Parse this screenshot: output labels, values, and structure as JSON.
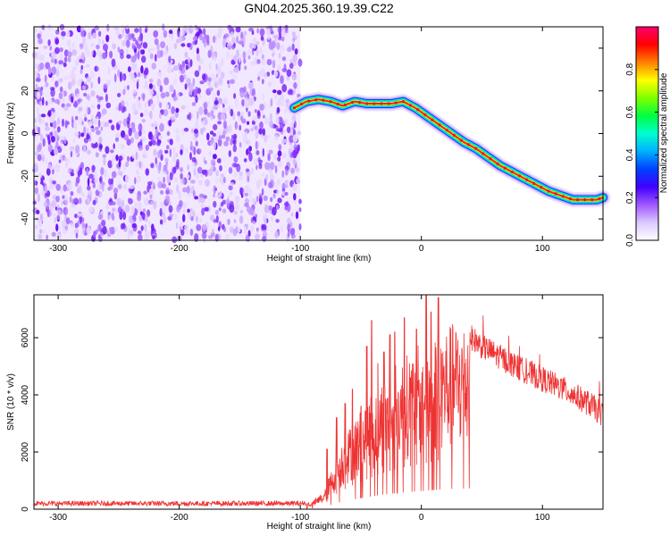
{
  "title": "GN04.2025.360.19.39.C22",
  "chart_data": [
    {
      "type": "heatmap",
      "xlabel": "Height of straight line (km)",
      "ylabel": "Frequency (Hz)",
      "xlim": [
        -320,
        150
      ],
      "ylim": [
        -50,
        50
      ],
      "xticks": [
        -300,
        -200,
        -100,
        0,
        100
      ],
      "yticks": [
        -40,
        -20,
        0,
        20,
        40
      ],
      "noise_region_x": [
        -320,
        -100
      ],
      "ridge": {
        "x": [
          -105,
          -95,
          -85,
          -75,
          -65,
          -55,
          -45,
          -35,
          -25,
          -15,
          -5,
          5,
          15,
          25,
          35,
          45,
          55,
          65,
          75,
          85,
          95,
          105,
          115,
          125,
          135,
          145,
          150
        ],
        "y": [
          12,
          15,
          16,
          15,
          13,
          15,
          14,
          14,
          14,
          15,
          12,
          8,
          4,
          0,
          -4,
          -7,
          -11,
          -15,
          -18,
          -21,
          -24,
          -27,
          -29,
          -31,
          -31,
          -31,
          -30
        ]
      },
      "colorbar": {
        "label": "Normalized spectral amplitude",
        "ticks": [
          "0.0",
          "0.2",
          "0.4",
          "0.6",
          "0.8"
        ],
        "range": [
          0,
          1
        ],
        "colors": [
          "#ffffff",
          "#dcc8ff",
          "#9f56ff",
          "#4000ff",
          "#0040ff",
          "#00b0ff",
          "#00ffd0",
          "#00ff40",
          "#80ff00",
          "#ffff00",
          "#ff8000",
          "#ff0000",
          "#ff0070"
        ]
      }
    },
    {
      "type": "line",
      "xlabel": "Height of straight line (km)",
      "ylabel": "SNR (10 * v/v)",
      "xlim": [
        -320,
        150
      ],
      "ylim": [
        0,
        7500
      ],
      "xticks": [
        -300,
        -200,
        -100,
        0,
        100
      ],
      "yticks": [
        0,
        2000,
        4000,
        6000
      ],
      "color": "#ee3333",
      "envelope": {
        "x": [
          -320,
          -100,
          -90,
          -80,
          -70,
          -60,
          -50,
          -40,
          -30,
          -20,
          -10,
          0,
          10,
          20,
          30,
          40,
          50,
          60,
          70,
          80,
          90,
          100,
          110,
          120,
          130,
          140,
          150
        ],
        "y": [
          200,
          200,
          250,
          600,
          1800,
          2600,
          3200,
          3800,
          4300,
          4700,
          5000,
          5300,
          5600,
          5850,
          6000,
          6050,
          5700,
          5450,
          5200,
          4950,
          4750,
          4550,
          4350,
          4150,
          3900,
          3650,
          3300
        ]
      },
      "spikes": {
        "x": [
          -78,
          -70,
          -63,
          -57,
          -50,
          -45,
          -41,
          -36,
          -31,
          -26,
          -22,
          -14,
          -9,
          -4,
          4,
          8,
          14
        ],
        "y": [
          2100,
          3200,
          3700,
          4200,
          3600,
          5700,
          6600,
          5100,
          5500,
          6100,
          6200,
          6700,
          4600,
          6300,
          7500,
          6900,
          7400
        ]
      }
    }
  ]
}
